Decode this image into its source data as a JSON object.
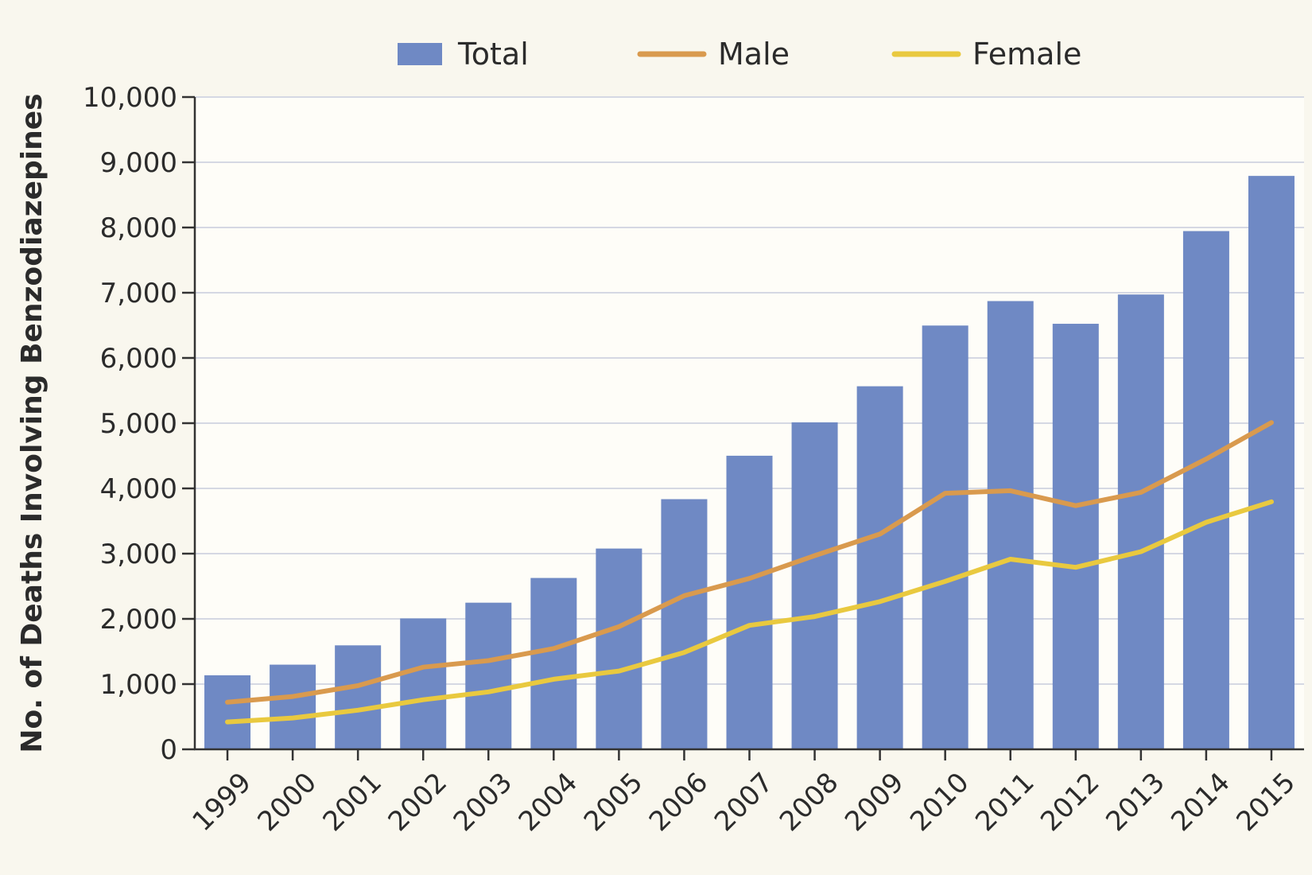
{
  "chart_data": {
    "type": "bar",
    "categories": [
      "1999",
      "2000",
      "2001",
      "2002",
      "2003",
      "2004",
      "2005",
      "2006",
      "2007",
      "2008",
      "2009",
      "2010",
      "2011",
      "2012",
      "2013",
      "2014",
      "2015"
    ],
    "series": [
      {
        "name": "Total",
        "type": "bar",
        "color": "#6f89c4",
        "values": [
          1135,
          1298,
          1594,
          2006,
          2248,
          2627,
          3078,
          3835,
          4501,
          5013,
          5566,
          6497,
          6872,
          6524,
          6973,
          7945,
          8791
        ]
      },
      {
        "name": "Male",
        "type": "line",
        "color": "#d99a4e",
        "values": [
          722,
          810,
          975,
          1260,
          1360,
          1545,
          1880,
          2355,
          2620,
          2970,
          3300,
          3925,
          3965,
          3735,
          3940,
          4450,
          5010
        ]
      },
      {
        "name": "Female",
        "type": "line",
        "color": "#e9c93f",
        "values": [
          420,
          480,
          600,
          760,
          880,
          1075,
          1200,
          1485,
          1900,
          2035,
          2265,
          2575,
          2915,
          2790,
          3030,
          3480,
          3795
        ]
      }
    ],
    "ylabel": "No. of Deaths Involving Benzodiazepines",
    "xlabel": "",
    "ylim": [
      0,
      10000
    ],
    "yticks": [
      0,
      1000,
      2000,
      3000,
      4000,
      5000,
      6000,
      7000,
      8000,
      9000,
      10000
    ],
    "ytick_labels": [
      "0",
      "1,000",
      "2,000",
      "3,000",
      "4,000",
      "5,000",
      "6,000",
      "7,000",
      "8,000",
      "9,000",
      "10,000"
    ],
    "grid": "horizontal",
    "legend_position": "top"
  }
}
